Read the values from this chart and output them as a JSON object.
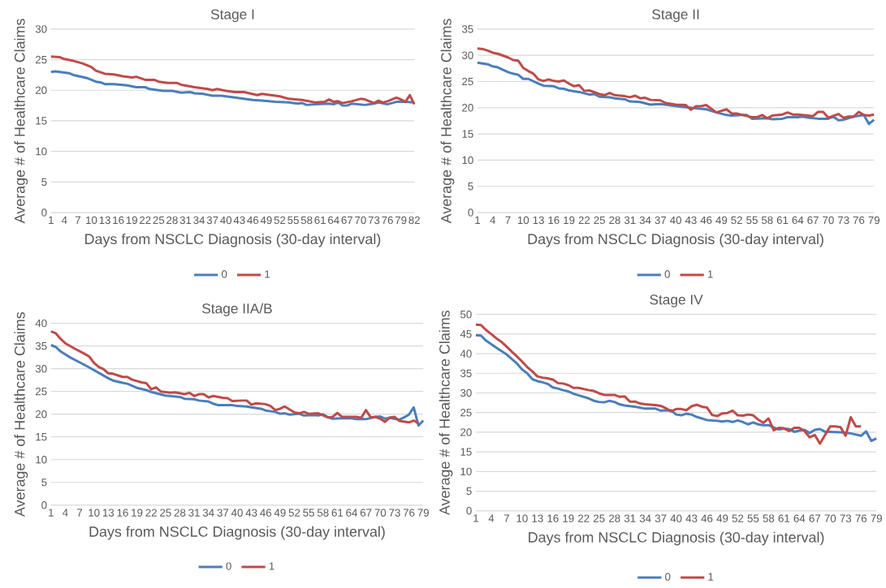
{
  "chart_data": [
    {
      "type": "line",
      "title": "Stage I",
      "xlabel": "Days from NSCLC Diagnosis (30-day interval)",
      "ylabel": "Average # of Healthcare Claims",
      "xlim": [
        1,
        82
      ],
      "xticks": [
        1,
        4,
        7,
        10,
        13,
        16,
        19,
        22,
        25,
        28,
        31,
        34,
        37,
        40,
        43,
        46,
        49,
        52,
        55,
        58,
        61,
        64,
        67,
        70,
        73,
        76,
        79,
        82
      ],
      "ylim": [
        0,
        30
      ],
      "yticks": [
        0,
        5,
        10,
        15,
        20,
        25,
        30
      ],
      "grid": "y",
      "legend": "bottom",
      "series": [
        {
          "name": "0",
          "color": "#4a7ebb",
          "x": [
            1,
            2,
            5,
            6,
            9,
            11,
            12,
            13,
            15,
            18,
            20,
            22,
            23,
            26,
            28,
            30,
            32,
            33,
            35,
            37,
            39,
            42,
            46,
            48,
            51,
            54,
            56,
            57,
            58,
            60,
            63,
            64,
            65,
            66,
            67,
            68,
            71,
            73,
            74,
            76,
            78,
            80,
            82
          ],
          "values": [
            23.0,
            23.1,
            22.8,
            22.5,
            22.0,
            21.4,
            21.3,
            21.0,
            21.0,
            20.8,
            20.5,
            20.5,
            20.2,
            19.9,
            19.9,
            19.6,
            19.7,
            19.5,
            19.4,
            19.1,
            19.1,
            18.8,
            18.4,
            18.3,
            18.1,
            18.0,
            17.8,
            17.9,
            17.6,
            17.7,
            17.8,
            17.7,
            18.0,
            17.5,
            17.5,
            17.8,
            17.6,
            17.8,
            18.0,
            17.7,
            18.1,
            18.1,
            18.0
          ]
        },
        {
          "name": "1",
          "color": "#be4b48",
          "x": [
            1,
            3,
            4,
            6,
            8,
            10,
            11,
            13,
            15,
            17,
            19,
            20,
            22,
            24,
            25,
            27,
            29,
            30,
            33,
            36,
            37,
            38,
            40,
            42,
            44,
            47,
            48,
            52,
            54,
            57,
            60,
            62,
            63,
            64,
            65,
            66,
            68,
            70,
            71,
            73,
            74,
            75,
            76,
            78,
            79,
            80,
            81,
            82
          ],
          "values": [
            25.5,
            25.4,
            25.1,
            24.8,
            24.4,
            23.8,
            23.2,
            22.7,
            22.6,
            22.3,
            22.1,
            22.2,
            21.7,
            21.7,
            21.4,
            21.2,
            21.2,
            20.9,
            20.5,
            20.2,
            20.0,
            20.2,
            19.9,
            19.7,
            19.7,
            19.2,
            19.4,
            19.0,
            18.6,
            18.4,
            18.0,
            18.1,
            18.5,
            18.1,
            18.2,
            17.9,
            18.2,
            18.6,
            18.5,
            17.9,
            18.3,
            18.0,
            18.2,
            18.8,
            18.5,
            18.1,
            19.2,
            17.7
          ]
        }
      ]
    },
    {
      "type": "line",
      "title": "Stage II",
      "xlabel": "Days from NSCLC Diagnosis (30-day interval)",
      "ylabel": "Average # of Healthcare Claims",
      "xlim": [
        1,
        79
      ],
      "xticks": [
        1,
        4,
        7,
        10,
        13,
        16,
        19,
        22,
        25,
        28,
        31,
        34,
        37,
        40,
        43,
        46,
        49,
        52,
        55,
        58,
        61,
        64,
        67,
        70,
        73,
        76,
        79
      ],
      "ylim": [
        0,
        35
      ],
      "yticks": [
        0,
        5,
        10,
        15,
        20,
        25,
        30,
        35
      ],
      "grid": "y",
      "legend": "bottom",
      "series": [
        {
          "name": "0",
          "color": "#4a7ebb",
          "x": [
            1,
            3,
            4,
            5,
            7,
            8,
            9,
            10,
            11,
            13,
            14,
            16,
            17,
            18,
            19,
            21,
            23,
            24,
            25,
            27,
            28,
            30,
            31,
            33,
            35,
            37,
            40,
            42,
            44,
            46,
            48,
            50,
            51,
            53,
            54,
            55,
            58,
            59,
            61,
            62,
            64,
            65,
            66,
            68,
            70,
            71,
            72,
            73,
            75,
            77,
            78,
            79
          ],
          "values": [
            28.6,
            28.3,
            27.9,
            27.7,
            26.8,
            26.5,
            26.3,
            25.5,
            25.5,
            24.6,
            24.2,
            24.1,
            23.7,
            23.6,
            23.3,
            23.0,
            22.5,
            22.6,
            22.1,
            22.0,
            21.8,
            21.6,
            21.2,
            21.1,
            20.6,
            20.7,
            20.3,
            20.1,
            19.9,
            19.7,
            19.1,
            18.6,
            18.5,
            18.6,
            18.6,
            17.9,
            18.0,
            17.8,
            17.9,
            18.2,
            18.2,
            18.3,
            18.1,
            17.9,
            17.9,
            18.3,
            17.6,
            17.7,
            18.3,
            18.6,
            16.9,
            17.7
          ]
        },
        {
          "name": "1",
          "color": "#be4b48",
          "x": [
            1,
            2,
            3,
            4,
            5,
            7,
            8,
            9,
            10,
            11,
            12,
            13,
            14,
            15,
            16,
            17,
            18,
            19,
            20,
            21,
            22,
            23,
            25,
            26,
            27,
            28,
            30,
            31,
            32,
            33,
            34,
            35,
            37,
            38,
            40,
            42,
            43,
            44,
            45,
            46,
            48,
            50,
            51,
            52,
            54,
            55,
            56,
            57,
            58,
            59,
            61,
            62,
            63,
            64,
            66,
            67,
            68,
            69,
            70,
            72,
            73,
            74,
            75,
            76,
            77,
            78,
            79
          ],
          "values": [
            31.3,
            31.2,
            30.9,
            30.5,
            30.3,
            29.6,
            29.1,
            29.0,
            27.6,
            27.0,
            26.5,
            25.4,
            25.1,
            25.4,
            25.1,
            25.0,
            25.2,
            24.6,
            24.1,
            24.3,
            23.2,
            23.3,
            22.6,
            22.4,
            22.8,
            22.4,
            22.2,
            22.0,
            22.3,
            21.8,
            21.9,
            21.5,
            21.4,
            20.9,
            20.6,
            20.5,
            19.6,
            20.3,
            20.3,
            20.5,
            19.1,
            19.7,
            18.9,
            18.9,
            18.4,
            18.2,
            18.2,
            18.6,
            18.0,
            18.5,
            18.7,
            19.1,
            18.7,
            18.7,
            18.5,
            18.4,
            19.2,
            19.2,
            18.1,
            18.8,
            18.1,
            18.3,
            18.3,
            19.2,
            18.6,
            18.5,
            18.7
          ]
        }
      ]
    },
    {
      "type": "line",
      "title": "Stage IIA/B",
      "xlabel": "Days from NSCLC Diagnosis (30-day interval)",
      "ylabel": "Average # of Healthcare Claims",
      "xlim": [
        1,
        79
      ],
      "xticks": [
        1,
        4,
        7,
        10,
        13,
        16,
        19,
        22,
        25,
        28,
        31,
        34,
        37,
        40,
        43,
        46,
        49,
        52,
        55,
        58,
        61,
        64,
        67,
        70,
        73,
        76,
        79
      ],
      "ylim": [
        0,
        40
      ],
      "yticks": [
        0,
        5,
        10,
        15,
        20,
        25,
        30,
        35,
        40
      ],
      "grid": "y",
      "legend": "bottom",
      "series": [
        {
          "name": "0",
          "color": "#4a7ebb",
          "x": [
            1,
            2,
            3,
            5,
            7,
            9,
            11,
            13,
            14,
            16,
            17,
            19,
            21,
            22,
            25,
            28,
            29,
            31,
            32,
            34,
            35,
            36,
            39,
            40,
            42,
            43,
            45,
            46,
            48,
            49,
            50,
            51,
            53,
            54,
            56,
            57,
            58,
            59,
            60,
            62,
            64,
            65,
            67,
            69,
            70,
            71,
            72,
            74,
            75,
            76,
            77,
            78,
            79
          ],
          "values": [
            35.2,
            34.8,
            33.8,
            32.5,
            31.4,
            30.3,
            29.1,
            27.9,
            27.4,
            26.9,
            26.7,
            25.8,
            25.3,
            24.9,
            24.1,
            23.8,
            23.4,
            23.3,
            23.0,
            22.8,
            22.3,
            22.0,
            22.0,
            21.8,
            21.7,
            21.5,
            21.2,
            20.8,
            20.5,
            20.1,
            20.2,
            19.9,
            20.1,
            19.7,
            19.8,
            19.7,
            20.0,
            19.3,
            19.0,
            19.1,
            19.1,
            18.9,
            18.9,
            19.4,
            19.5,
            19.0,
            19.2,
            18.8,
            19.3,
            19.9,
            21.5,
            17.5,
            18.6
          ]
        },
        {
          "name": "1",
          "color": "#be4b48",
          "x": [
            1,
            2,
            3,
            4,
            6,
            8,
            9,
            10,
            11,
            12,
            13,
            14,
            16,
            17,
            18,
            20,
            21,
            22,
            23,
            24,
            26,
            27,
            29,
            30,
            31,
            32,
            33,
            34,
            35,
            37,
            38,
            39,
            41,
            42,
            43,
            44,
            46,
            47,
            48,
            49,
            50,
            52,
            53,
            54,
            55,
            57,
            59,
            60,
            61,
            62,
            65,
            66,
            67,
            68,
            69,
            70,
            71,
            72,
            73,
            74,
            76,
            77,
            78
          ],
          "values": [
            38.2,
            37.8,
            36.6,
            35.6,
            34.4,
            33.3,
            32.7,
            31.3,
            30.4,
            29.9,
            29.0,
            28.9,
            28.2,
            28.2,
            27.6,
            27.0,
            26.8,
            25.5,
            25.9,
            25.0,
            24.7,
            24.8,
            24.4,
            24.7,
            24.0,
            24.4,
            24.4,
            23.7,
            24.0,
            23.6,
            23.5,
            22.9,
            23.0,
            23.0,
            22.1,
            22.4,
            22.2,
            21.8,
            20.9,
            21.2,
            21.7,
            20.4,
            20.2,
            20.5,
            20.1,
            20.2,
            19.3,
            19.4,
            20.3,
            19.4,
            19.4,
            19.2,
            20.9,
            19.3,
            19.4,
            19.0,
            18.3,
            19.3,
            19.4,
            18.5,
            18.2,
            18.6,
            18.0
          ]
        }
      ]
    },
    {
      "type": "line",
      "title": "Stage IV",
      "xlabel": "Days from NSCLC Diagnosis (30-day interval)",
      "ylabel": "Average # of Healthcare Claims",
      "xlim": [
        1,
        79
      ],
      "xticks": [
        1,
        4,
        7,
        10,
        13,
        16,
        19,
        22,
        25,
        28,
        31,
        34,
        37,
        40,
        43,
        46,
        49,
        52,
        55,
        58,
        61,
        64,
        67,
        70,
        73,
        76,
        79
      ],
      "ylim": [
        0,
        50
      ],
      "yticks": [
        0,
        5,
        10,
        15,
        20,
        25,
        30,
        35,
        40,
        45,
        50
      ],
      "grid": "y",
      "legend": "bottom",
      "series": [
        {
          "name": "0",
          "color": "#4a7ebb",
          "x": [
            1,
            2,
            3,
            5,
            7,
            9,
            10,
            11,
            12,
            13,
            14,
            15,
            16,
            17,
            18,
            19,
            20,
            21,
            23,
            24,
            25,
            26,
            27,
            28,
            29,
            30,
            32,
            34,
            36,
            37,
            39,
            40,
            41,
            42,
            43,
            44,
            46,
            48,
            49,
            50,
            51,
            52,
            53,
            54,
            55,
            56,
            57,
            58,
            59,
            60,
            61,
            62,
            63,
            64,
            65,
            66,
            67,
            68,
            69,
            70,
            72,
            74,
            76,
            77,
            78,
            79
          ],
          "values": [
            44.7,
            44.6,
            43.3,
            41.5,
            39.8,
            37.5,
            36.0,
            35.0,
            33.5,
            33.0,
            32.7,
            32.3,
            31.4,
            31.1,
            30.7,
            30.4,
            29.8,
            29.4,
            28.6,
            28.0,
            27.7,
            27.6,
            28.0,
            27.7,
            27.1,
            26.8,
            26.5,
            26.0,
            26.0,
            25.5,
            25.6,
            24.5,
            24.3,
            24.7,
            24.5,
            23.9,
            23.1,
            22.9,
            22.7,
            22.9,
            22.6,
            23.0,
            22.6,
            22.0,
            22.5,
            22.0,
            21.8,
            21.8,
            21.2,
            20.7,
            20.9,
            20.8,
            20.1,
            20.4,
            20.6,
            19.8,
            20.6,
            20.8,
            20.1,
            20.1,
            20.0,
            19.7,
            19.1,
            20.2,
            17.8,
            18.4
          ]
        },
        {
          "name": "1",
          "color": "#be4b48",
          "x": [
            1,
            2,
            3,
            4,
            5,
            6,
            7,
            8,
            9,
            10,
            11,
            12,
            13,
            14,
            15,
            16,
            17,
            18,
            19,
            20,
            21,
            22,
            23,
            24,
            25,
            26,
            27,
            28,
            29,
            30,
            31,
            32,
            33,
            34,
            35,
            36,
            37,
            38,
            39,
            40,
            41,
            42,
            43,
            44,
            45,
            46,
            47,
            48,
            49,
            50,
            51,
            52,
            53,
            54,
            55,
            56,
            57,
            58,
            59,
            60,
            61,
            62,
            63,
            64,
            65,
            66,
            67,
            68,
            69,
            70,
            71,
            72,
            73,
            74,
            75,
            76
          ],
          "values": [
            47.4,
            47.3,
            46.0,
            45.0,
            43.9,
            43.0,
            41.8,
            40.5,
            39.3,
            38.0,
            36.6,
            35.5,
            34.2,
            33.9,
            33.7,
            33.4,
            32.5,
            32.4,
            32.0,
            31.3,
            31.3,
            31.0,
            30.7,
            30.5,
            29.9,
            29.5,
            29.5,
            29.5,
            29.0,
            29.1,
            27.8,
            27.8,
            27.3,
            27.1,
            27.0,
            26.9,
            26.7,
            26.1,
            25.3,
            25.9,
            25.9,
            25.6,
            26.6,
            27.0,
            26.5,
            26.3,
            24.4,
            24.1,
            24.8,
            24.9,
            25.5,
            24.3,
            24.2,
            24.5,
            24.3,
            23.2,
            22.4,
            23.5,
            20.5,
            21.1,
            21.0,
            20.3,
            21.1,
            21.1,
            20.3,
            18.7,
            19.3,
            17.1,
            19.3,
            21.5,
            21.5,
            21.3,
            19.1,
            23.8,
            21.5,
            21.5
          ]
        }
      ]
    }
  ]
}
